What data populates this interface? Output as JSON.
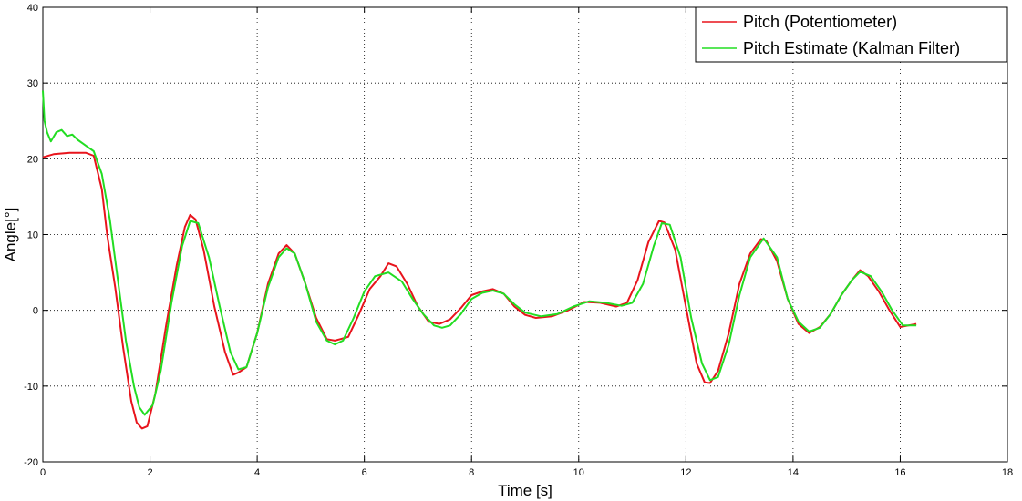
{
  "chart_data": {
    "type": "line",
    "xlabel": "Time [s]",
    "ylabel": "Angle[°]",
    "xlim": [
      0,
      18
    ],
    "ylim": [
      -20,
      40
    ],
    "xticks": [
      0,
      2,
      4,
      6,
      8,
      10,
      12,
      14,
      16,
      18
    ],
    "yticks": [
      -20,
      -10,
      0,
      10,
      20,
      30,
      40
    ],
    "grid": true,
    "legend_position": "top-right",
    "series": [
      {
        "name": "Pitch (Potentiometer)",
        "color": "#e8141c",
        "x": [
          0,
          0.2,
          0.5,
          0.8,
          0.95,
          1.1,
          1.2,
          1.35,
          1.5,
          1.65,
          1.75,
          1.85,
          1.95,
          2.1,
          2.3,
          2.5,
          2.65,
          2.75,
          2.85,
          3.0,
          3.2,
          3.4,
          3.55,
          3.65,
          3.8,
          4.0,
          4.2,
          4.4,
          4.55,
          4.7,
          4.9,
          5.1,
          5.3,
          5.45,
          5.55,
          5.7,
          5.9,
          6.1,
          6.3,
          6.45,
          6.6,
          6.8,
          7.0,
          7.2,
          7.4,
          7.6,
          7.8,
          8.0,
          8.2,
          8.4,
          8.6,
          8.8,
          9.0,
          9.2,
          9.5,
          9.8,
          10.1,
          10.4,
          10.7,
          10.9,
          11.1,
          11.3,
          11.5,
          11.6,
          11.8,
          12.0,
          12.2,
          12.35,
          12.45,
          12.6,
          12.8,
          13.0,
          13.2,
          13.4,
          13.5,
          13.7,
          13.9,
          14.1,
          14.3,
          14.5,
          14.7,
          14.9,
          15.1,
          15.25,
          15.4,
          15.6,
          15.8,
          16.0,
          16.15,
          16.3
        ],
        "y": [
          20.2,
          20.6,
          20.8,
          20.8,
          20.4,
          16.0,
          10.0,
          3.0,
          -5.0,
          -12.0,
          -14.8,
          -15.6,
          -15.3,
          -11.0,
          -2.0,
          6.0,
          11.0,
          12.6,
          12.0,
          8.0,
          0.5,
          -5.5,
          -8.5,
          -8.2,
          -7.5,
          -3.0,
          3.5,
          7.5,
          8.6,
          7.5,
          3.5,
          -1.0,
          -3.8,
          -4.0,
          -3.8,
          -3.5,
          -0.5,
          2.8,
          4.5,
          6.2,
          5.8,
          3.5,
          0.5,
          -1.5,
          -1.8,
          -1.2,
          0.3,
          2.0,
          2.5,
          2.8,
          2.2,
          0.5,
          -0.6,
          -1.0,
          -0.8,
          0.0,
          1.1,
          1.0,
          0.5,
          1.0,
          4.0,
          9.0,
          11.8,
          11.6,
          8.0,
          0.5,
          -7.0,
          -9.5,
          -9.6,
          -8.0,
          -3.0,
          3.5,
          7.5,
          9.4,
          9.2,
          6.5,
          1.5,
          -1.8,
          -3.0,
          -2.2,
          -0.5,
          2.0,
          4.0,
          5.3,
          4.5,
          2.5,
          0.0,
          -2.2,
          -2.0,
          -1.8
        ]
      },
      {
        "name": "Pitch Estimate (Kalman Filter)",
        "color": "#22dd22",
        "x": [
          0,
          0.03,
          0.08,
          0.15,
          0.25,
          0.35,
          0.45,
          0.55,
          0.65,
          0.75,
          0.85,
          0.95,
          1.1,
          1.25,
          1.4,
          1.55,
          1.7,
          1.8,
          1.9,
          2.05,
          2.2,
          2.4,
          2.6,
          2.75,
          2.9,
          3.1,
          3.3,
          3.5,
          3.65,
          3.8,
          4.0,
          4.2,
          4.4,
          4.55,
          4.7,
          4.9,
          5.1,
          5.3,
          5.45,
          5.6,
          5.8,
          6.0,
          6.2,
          6.45,
          6.7,
          6.9,
          7.1,
          7.3,
          7.45,
          7.6,
          7.8,
          8.0,
          8.2,
          8.4,
          8.6,
          8.8,
          9.0,
          9.3,
          9.6,
          9.9,
          10.2,
          10.5,
          10.8,
          11.0,
          11.2,
          11.4,
          11.55,
          11.7,
          11.9,
          12.1,
          12.3,
          12.45,
          12.6,
          12.8,
          13.0,
          13.2,
          13.45,
          13.7,
          13.9,
          14.1,
          14.3,
          14.5,
          14.7,
          14.9,
          15.1,
          15.25,
          15.45,
          15.65,
          15.85,
          16.05,
          16.3
        ],
        "y": [
          29.0,
          25.0,
          23.5,
          22.3,
          23.5,
          23.8,
          23.0,
          23.2,
          22.5,
          22.0,
          21.5,
          21.0,
          18.0,
          12.0,
          4.0,
          -4.0,
          -10.0,
          -12.8,
          -13.8,
          -12.5,
          -8.0,
          1.0,
          8.5,
          11.8,
          11.5,
          7.0,
          0.5,
          -5.5,
          -7.8,
          -7.5,
          -3.0,
          3.0,
          7.0,
          8.2,
          7.5,
          3.5,
          -1.5,
          -4.0,
          -4.5,
          -4.0,
          -1.0,
          2.5,
          4.5,
          5.0,
          3.8,
          1.5,
          -0.5,
          -2.0,
          -2.3,
          -2.0,
          -0.5,
          1.5,
          2.3,
          2.6,
          2.2,
          0.8,
          -0.3,
          -0.8,
          -0.5,
          0.5,
          1.2,
          1.0,
          0.6,
          1.0,
          3.5,
          8.5,
          11.5,
          11.3,
          7.0,
          -1.0,
          -7.0,
          -9.2,
          -8.8,
          -4.5,
          2.0,
          7.0,
          9.5,
          7.0,
          1.5,
          -1.5,
          -2.8,
          -2.3,
          -0.5,
          2.0,
          4.0,
          5.1,
          4.5,
          2.5,
          0.0,
          -2.0,
          -2.0
        ]
      }
    ]
  }
}
